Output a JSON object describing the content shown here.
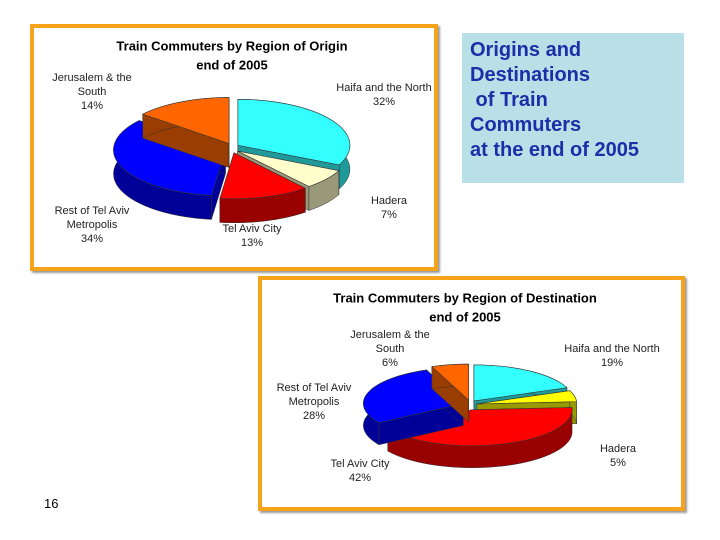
{
  "slide": {
    "heading": [
      "Origins and",
      "Destinations",
      " of Train",
      "Commuters",
      "at the end of 2005"
    ],
    "page_number": "16"
  },
  "chart_data": [
    {
      "type": "pie",
      "title": "Train Commuters by Region of Origin",
      "subtitle": "end of 2005",
      "categories": [
        "Haifa and the North",
        "Hadera",
        "Tel Aviv City",
        "Rest of Tel Aviv Metropolis",
        "Jerusalem & the South"
      ],
      "values": [
        32,
        7,
        13,
        34,
        14
      ],
      "value_labels": [
        "32%",
        "7%",
        "13%",
        "34%",
        "14%"
      ],
      "colors": [
        "#33ffff",
        "#ffffcc",
        "#ff0000",
        "#0000ff",
        "#ff6600"
      ]
    },
    {
      "type": "pie",
      "title": "Train Commuters by Region of Destination",
      "subtitle": "end of 2005",
      "categories": [
        "Haifa and the North",
        "Hadera",
        "Tel Aviv City",
        "Rest of Tel Aviv Metropolis",
        "Jerusalem & the South"
      ],
      "values": [
        19,
        5,
        42,
        28,
        6
      ],
      "value_labels": [
        "19%",
        "5%",
        "42%",
        "28%",
        "6%"
      ],
      "colors": [
        "#33ffff",
        "#ffff00",
        "#ff0000",
        "#0000ff",
        "#ff6600"
      ]
    }
  ]
}
